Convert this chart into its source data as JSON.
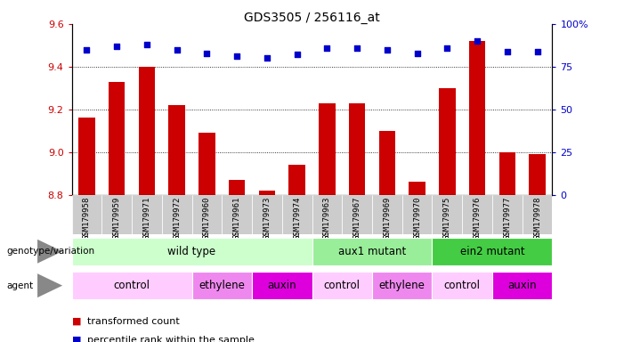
{
  "title": "GDS3505 / 256116_at",
  "samples": [
    "GSM179958",
    "GSM179959",
    "GSM179971",
    "GSM179972",
    "GSM179960",
    "GSM179961",
    "GSM179973",
    "GSM179974",
    "GSM179963",
    "GSM179967",
    "GSM179969",
    "GSM179970",
    "GSM179975",
    "GSM179976",
    "GSM179977",
    "GSM179978"
  ],
  "bar_values": [
    9.16,
    9.33,
    9.4,
    9.22,
    9.09,
    8.87,
    8.82,
    8.94,
    9.23,
    9.23,
    9.1,
    8.86,
    9.3,
    9.52,
    9.0,
    8.99
  ],
  "percentile_values": [
    85,
    87,
    88,
    85,
    83,
    81,
    80,
    82,
    86,
    86,
    85,
    83,
    86,
    90,
    84,
    84
  ],
  "ylim_left": [
    8.8,
    9.6
  ],
  "ylim_right": [
    0,
    100
  ],
  "yticks_left": [
    8.8,
    9.0,
    9.2,
    9.4,
    9.6
  ],
  "yticks_right": [
    0,
    25,
    50,
    75,
    100
  ],
  "ytick_labels_right": [
    "0",
    "25",
    "50",
    "75",
    "100%"
  ],
  "bar_color": "#cc0000",
  "dot_color": "#0000cc",
  "bar_bottom": 8.8,
  "genotype_groups": [
    {
      "label": "wild type",
      "start": 0,
      "end": 8,
      "color": "#ccffcc"
    },
    {
      "label": "aux1 mutant",
      "start": 8,
      "end": 12,
      "color": "#99ee99"
    },
    {
      "label": "ein2 mutant",
      "start": 12,
      "end": 16,
      "color": "#44cc44"
    }
  ],
  "agent_groups": [
    {
      "label": "control",
      "start": 0,
      "end": 4,
      "color": "#ffccff"
    },
    {
      "label": "ethylene",
      "start": 4,
      "end": 6,
      "color": "#ee88ee"
    },
    {
      "label": "auxin",
      "start": 6,
      "end": 8,
      "color": "#dd00dd"
    },
    {
      "label": "control",
      "start": 8,
      "end": 10,
      "color": "#ffccff"
    },
    {
      "label": "ethylene",
      "start": 10,
      "end": 12,
      "color": "#ee88ee"
    },
    {
      "label": "control",
      "start": 12,
      "end": 14,
      "color": "#ffccff"
    },
    {
      "label": "auxin",
      "start": 14,
      "end": 16,
      "color": "#dd00dd"
    }
  ],
  "legend_red_label": "transformed count",
  "legend_blue_label": "percentile rank within the sample",
  "background_color": "#ffffff",
  "tick_color_left": "#cc0000",
  "tick_color_right": "#0000cc",
  "xtick_bg_color": "#cccccc"
}
